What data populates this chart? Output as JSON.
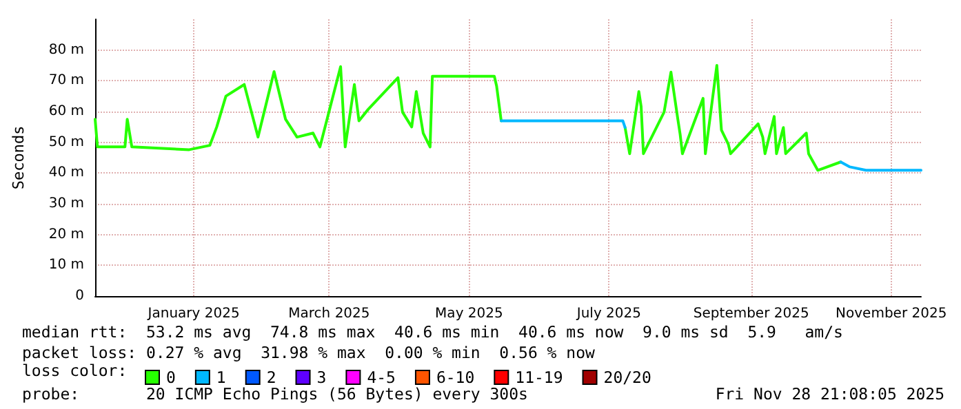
{
  "chart_data": {
    "type": "line",
    "ylabel": "Seconds",
    "legend_title": "loss color:",
    "legend": "bottom",
    "xlim": [
      "2024-12-03",
      "2025-11-28"
    ],
    "xticks": [
      {
        "value": "2025-01-15",
        "label": "January 2025"
      },
      {
        "value": "2025-03-15",
        "label": "March 2025"
      },
      {
        "value": "2025-05-15",
        "label": "May 2025"
      },
      {
        "value": "2025-07-15",
        "label": "July 2025"
      },
      {
        "value": "2025-09-15",
        "label": "September 2025"
      },
      {
        "value": "2025-11-15",
        "label": "November 2025"
      }
    ],
    "ylim": [
      0,
      90
    ],
    "yticks": [
      {
        "value": 0,
        "label": "0"
      },
      {
        "value": 10,
        "label": "10 m"
      },
      {
        "value": 20,
        "label": "20 m"
      },
      {
        "value": 30,
        "label": "30 m"
      },
      {
        "value": 40,
        "label": "40 m"
      },
      {
        "value": 50,
        "label": "50 m"
      },
      {
        "value": 60,
        "label": "60 m"
      },
      {
        "value": 70,
        "label": "70 m"
      },
      {
        "value": 80,
        "label": "80 m"
      }
    ],
    "grid": true,
    "marker": "none",
    "line_style": "solid",
    "x": [
      "2024-12-03",
      "2024-12-04",
      "2024-12-16",
      "2024-12-17",
      "2024-12-19",
      "2025-01-13",
      "2025-01-22",
      "2025-01-25",
      "2025-01-29",
      "2025-02-06",
      "2025-02-12",
      "2025-02-19",
      "2025-02-24",
      "2025-03-01",
      "2025-03-08",
      "2025-03-11",
      "2025-03-20",
      "2025-03-22",
      "2025-03-26",
      "2025-03-28",
      "2025-04-01",
      "2025-04-14",
      "2025-04-16",
      "2025-04-20",
      "2025-04-22",
      "2025-04-25",
      "2025-04-28",
      "2025-04-29",
      "2025-05-26",
      "2025-05-27",
      "2025-05-29",
      "2025-07-21",
      "2025-07-22",
      "2025-07-24",
      "2025-07-28",
      "2025-07-29",
      "2025-07-30",
      "2025-08-08",
      "2025-08-11",
      "2025-08-14",
      "2025-08-15",
      "2025-08-16",
      "2025-08-25",
      "2025-08-26",
      "2025-08-31",
      "2025-09-02",
      "2025-09-05",
      "2025-09-06",
      "2025-09-18",
      "2025-09-20",
      "2025-09-21",
      "2025-09-25",
      "2025-09-26",
      "2025-09-29",
      "2025-09-30",
      "2025-10-09",
      "2025-10-10",
      "2025-10-14",
      "2025-10-24",
      "2025-10-28",
      "2025-11-04",
      "2025-11-28"
    ],
    "series": [
      {
        "name": "0",
        "color": "#26ff00",
        "values": [
          57.5,
          48.5,
          48.5,
          57.5,
          48.5,
          47.6,
          49,
          55,
          65,
          68.8,
          51.7,
          73,
          57.5,
          51.7,
          53,
          48.5,
          74.6,
          48.5,
          68.8,
          57,
          60.7,
          71,
          59.8,
          55,
          66.5,
          53,
          48.5,
          71.5,
          71.5,
          68.3,
          57,
          null,
          54.8,
          46.3,
          66.5,
          61.6,
          46.3,
          59.8,
          72.8,
          57.5,
          52.6,
          46.3,
          64.3,
          46.3,
          75,
          54,
          49.4,
          46.3,
          56,
          51.7,
          46.3,
          58.4,
          46.3,
          54.8,
          46.3,
          53,
          46.3,
          40.9,
          43.6,
          null,
          null,
          null
        ]
      },
      {
        "name": "1",
        "color": "#00b8ff",
        "values": [
          null,
          null,
          null,
          null,
          null,
          null,
          null,
          null,
          null,
          null,
          null,
          null,
          null,
          null,
          null,
          null,
          null,
          null,
          null,
          null,
          null,
          null,
          null,
          null,
          null,
          null,
          null,
          null,
          null,
          null,
          57,
          57,
          54.8,
          null,
          null,
          null,
          null,
          null,
          null,
          null,
          null,
          null,
          null,
          null,
          null,
          null,
          null,
          null,
          null,
          null,
          null,
          null,
          null,
          null,
          null,
          null,
          null,
          null,
          43.6,
          42,
          40.9,
          40.9
        ]
      },
      {
        "name": "2",
        "color": "#0059ff",
        "values": [
          null,
          null,
          null,
          null,
          null,
          null,
          null,
          null,
          null,
          null,
          null,
          null,
          null,
          null,
          null,
          null,
          null,
          null,
          null,
          null,
          null,
          null,
          null,
          null,
          null,
          null,
          null,
          null,
          null,
          null,
          null,
          null,
          null,
          null,
          null,
          null,
          null,
          null,
          null,
          null,
          null,
          null,
          null,
          null,
          null,
          null,
          null,
          null,
          null,
          null,
          null,
          null,
          null,
          null,
          null,
          null,
          null,
          null,
          null,
          null,
          null,
          null
        ]
      },
      {
        "name": "3",
        "color": "#5e00ff",
        "values": [
          null,
          null,
          null,
          null,
          null,
          null,
          null,
          null,
          null,
          null,
          null,
          null,
          null,
          null,
          null,
          null,
          null,
          null,
          null,
          null,
          null,
          null,
          null,
          null,
          null,
          null,
          null,
          null,
          null,
          null,
          null,
          null,
          null,
          null,
          null,
          null,
          null,
          null,
          null,
          null,
          null,
          null,
          null,
          null,
          null,
          null,
          null,
          null,
          null,
          null,
          null,
          null,
          null,
          null,
          null,
          null,
          null,
          null,
          null,
          null,
          null,
          null
        ]
      },
      {
        "name": "4-5",
        "color": "#ff00ff",
        "values": [
          null,
          null,
          null,
          null,
          null,
          null,
          null,
          null,
          null,
          null,
          null,
          null,
          null,
          null,
          null,
          null,
          null,
          null,
          null,
          null,
          null,
          null,
          null,
          null,
          null,
          null,
          null,
          null,
          null,
          null,
          null,
          null,
          null,
          null,
          null,
          null,
          null,
          null,
          null,
          null,
          null,
          null,
          null,
          null,
          null,
          null,
          null,
          null,
          null,
          null,
          null,
          null,
          null,
          null,
          null,
          null,
          null,
          null,
          null,
          null,
          null,
          null
        ]
      },
      {
        "name": "6-10",
        "color": "#ff5500",
        "values": [
          null,
          null,
          null,
          null,
          null,
          null,
          null,
          null,
          null,
          null,
          null,
          null,
          null,
          null,
          null,
          null,
          null,
          null,
          null,
          null,
          null,
          null,
          null,
          null,
          null,
          null,
          null,
          null,
          null,
          null,
          null,
          null,
          null,
          null,
          null,
          null,
          null,
          null,
          null,
          null,
          null,
          null,
          null,
          null,
          null,
          null,
          null,
          null,
          null,
          null,
          null,
          null,
          null,
          null,
          null,
          null,
          null,
          null,
          null,
          null,
          null,
          null
        ]
      },
      {
        "name": "11-19",
        "color": "#ff0000",
        "values": [
          null,
          null,
          null,
          null,
          null,
          null,
          null,
          null,
          null,
          null,
          null,
          null,
          null,
          null,
          null,
          null,
          null,
          null,
          null,
          null,
          null,
          null,
          null,
          null,
          null,
          null,
          null,
          null,
          null,
          null,
          null,
          null,
          null,
          null,
          null,
          null,
          null,
          null,
          null,
          null,
          null,
          null,
          null,
          null,
          null,
          null,
          null,
          null,
          null,
          null,
          null,
          null,
          null,
          null,
          null,
          null,
          null,
          null,
          null,
          null,
          null,
          null
        ]
      },
      {
        "name": "20/20",
        "color": "#a10000",
        "values": [
          null,
          null,
          null,
          null,
          null,
          null,
          null,
          null,
          null,
          null,
          null,
          null,
          null,
          null,
          null,
          null,
          null,
          null,
          null,
          null,
          null,
          null,
          null,
          null,
          null,
          null,
          null,
          null,
          null,
          null,
          null,
          null,
          null,
          null,
          null,
          null,
          null,
          null,
          null,
          null,
          null,
          null,
          null,
          null,
          null,
          null,
          null,
          null,
          null,
          null,
          null,
          null,
          null,
          null,
          null,
          null,
          null,
          null,
          null,
          null,
          null,
          null
        ]
      }
    ],
    "annotations": [
      "median rtt:  53.2 ms avg  74.8 ms max  40.6 ms min  40.6 ms now  9.0 ms sd  5.9   am/s",
      "packet loss: 0.27 % avg  31.98 % max  0.00 % min  0.56 % now",
      "probe:       20 ICMP Echo Pings (56 Bytes) every 300s",
      "Fri Nov 28 21:08:05 2025"
    ]
  }
}
